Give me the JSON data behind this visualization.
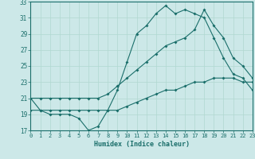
{
  "xlabel": "Humidex (Indice chaleur)",
  "bg_color": "#cce8e8",
  "line_color": "#1a6e6a",
  "grid_color": "#b0d8d0",
  "xlim": [
    0,
    23
  ],
  "ylim": [
    17,
    33
  ],
  "xticks": [
    0,
    1,
    2,
    3,
    4,
    5,
    6,
    7,
    8,
    9,
    10,
    11,
    12,
    13,
    14,
    15,
    16,
    17,
    18,
    19,
    20,
    21,
    22,
    23
  ],
  "yticks": [
    17,
    19,
    21,
    23,
    25,
    27,
    29,
    31,
    33
  ],
  "line1_x": [
    0,
    1,
    2,
    3,
    4,
    5,
    6,
    7,
    8,
    9,
    10,
    11,
    12,
    13,
    14,
    15,
    16,
    17,
    18,
    19,
    20,
    21,
    22,
    23
  ],
  "line1_y": [
    21,
    19.5,
    19,
    19,
    19,
    18.5,
    17,
    17.5,
    19.5,
    22,
    25.5,
    29,
    30,
    31.5,
    32.5,
    31.5,
    32,
    31.5,
    31,
    28.5,
    26,
    24,
    23.5,
    22
  ],
  "line2_x": [
    0,
    1,
    2,
    3,
    4,
    5,
    6,
    7,
    8,
    9,
    10,
    11,
    12,
    13,
    14,
    15,
    16,
    17,
    18,
    19,
    20,
    21,
    22,
    23
  ],
  "line2_y": [
    21,
    21,
    21,
    21,
    21,
    21,
    21,
    21,
    21.5,
    22.5,
    23.5,
    24.5,
    25.5,
    26.5,
    27.5,
    28,
    28.5,
    29.5,
    32,
    30,
    28.5,
    26,
    25,
    23.5
  ],
  "line3_x": [
    0,
    1,
    2,
    3,
    4,
    5,
    6,
    7,
    8,
    9,
    10,
    11,
    12,
    13,
    14,
    15,
    16,
    17,
    18,
    19,
    20,
    21,
    22,
    23
  ],
  "line3_y": [
    19.5,
    19.5,
    19.5,
    19.5,
    19.5,
    19.5,
    19.5,
    19.5,
    19.5,
    19.5,
    20,
    20.5,
    21,
    21.5,
    22,
    22,
    22.5,
    23,
    23,
    23.5,
    23.5,
    23.5,
    23,
    23
  ]
}
